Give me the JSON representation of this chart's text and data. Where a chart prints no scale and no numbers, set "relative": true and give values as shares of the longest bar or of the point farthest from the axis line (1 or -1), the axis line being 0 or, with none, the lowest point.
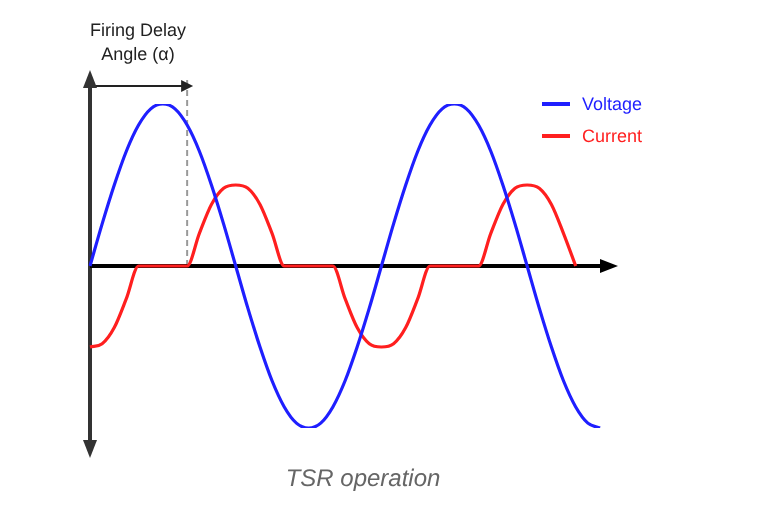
{
  "chart_data": {
    "type": "line",
    "relative": true,
    "categories": [
      null,
      null,
      null,
      null,
      null,
      null,
      null,
      null,
      null,
      null,
      null,
      null,
      null,
      null,
      null,
      null,
      null,
      null,
      null,
      null,
      null,
      null,
      null,
      null,
      null,
      null,
      null,
      null,
      null,
      null,
      null,
      null,
      null,
      null,
      null,
      null,
      null,
      null,
      null,
      null,
      null,
      null,
      null
    ],
    "series": [
      {
        "name": "Voltage",
        "color": "#1f1fff",
        "values": [
          0,
          0.26,
          0.5,
          0.71,
          0.87,
          0.97,
          1,
          0.97,
          0.87,
          0.71,
          0.5,
          0.26,
          0,
          -0.26,
          -0.5,
          -0.71,
          -0.87,
          -0.97,
          -1,
          -0.97,
          -0.87,
          -0.71,
          -0.5,
          -0.26,
          0,
          0.26,
          0.5,
          0.71,
          0.87,
          0.97,
          1,
          0.97,
          0.87,
          0.71,
          0.5,
          0.26,
          0,
          -0.26,
          -0.5,
          -0.71,
          -0.87,
          -0.97,
          -1
        ]
      },
      {
        "name": "Current",
        "color": "#ff1f1f",
        "values": [
          -0.5,
          -0.48,
          -0.38,
          -0.2,
          0,
          0,
          0,
          0,
          0,
          0.2,
          0.38,
          0.48,
          0.5,
          0.48,
          0.38,
          0.2,
          0,
          0,
          0,
          0,
          0,
          -0.2,
          -0.38,
          -0.48,
          -0.5,
          -0.48,
          -0.38,
          -0.2,
          0,
          0,
          0,
          0,
          0,
          0.2,
          0.38,
          0.48,
          0.5,
          0.48,
          0.38,
          0.2,
          0,
          null,
          null
        ]
      }
    ],
    "legend": "top right",
    "grid": false,
    "marker": "none",
    "line_style": "solid",
    "annotations": [
      "Firing Delay Angle (α)",
      "TSR operation"
    ]
  }
}
